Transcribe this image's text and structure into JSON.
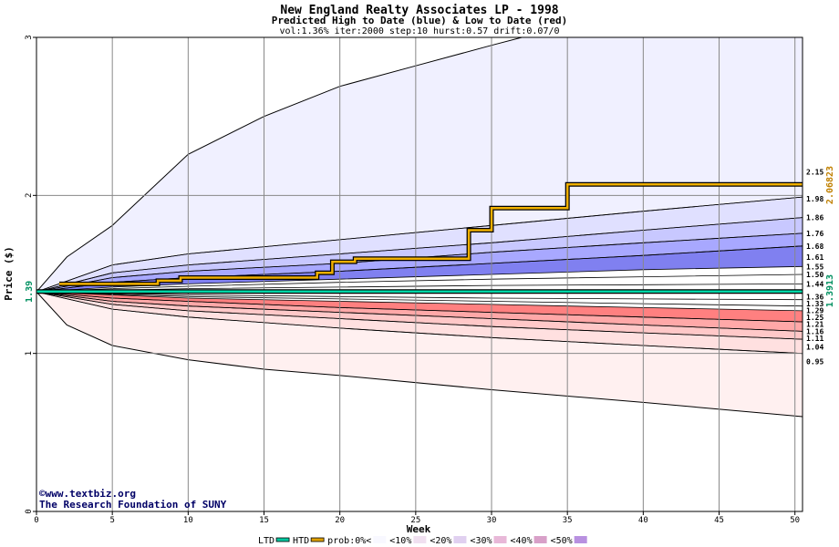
{
  "chart_data": {
    "type": "area",
    "title": "New England Realty Associates LP - 1998",
    "subtitle": "Predicted High to Date (blue) &  Low to Date (red)",
    "params": "vol:1.36% iter:2000 step:10 hurst:0.57 drift:0.07/0",
    "xlabel": "Week",
    "ylabel": "Price ($)",
    "xlim": [
      0,
      50.5
    ],
    "ylim": [
      0,
      3
    ],
    "x_ticks": [
      0,
      5,
      10,
      15,
      20,
      25,
      30,
      35,
      40,
      45,
      50
    ],
    "y_ticks": [
      0,
      1,
      2,
      3
    ],
    "grid": true,
    "current_price": 1.3913,
    "current_price_label": "1.39",
    "current_price_right_label": "1.3913",
    "htd_final_label": "2.06823",
    "high_bands": [
      {
        "name": "<10%",
        "color": "#f0f0ff",
        "lower": [
          [
            0,
            1.39
          ],
          [
            5,
            1.56
          ],
          [
            10,
            1.63
          ],
          [
            20,
            1.72
          ],
          [
            30,
            1.81
          ],
          [
            40,
            1.9
          ],
          [
            50.5,
            1.99
          ]
        ],
        "upper": [
          [
            0,
            1.39
          ],
          [
            2,
            1.61
          ],
          [
            5,
            1.81
          ],
          [
            10,
            2.26
          ],
          [
            15,
            2.5
          ],
          [
            20,
            2.69
          ],
          [
            25,
            2.82
          ],
          [
            30,
            2.95
          ],
          [
            32,
            3.0
          ],
          [
            50.5,
            3.0
          ]
        ]
      },
      {
        "name": "<20%",
        "color": "#e0e0ff",
        "lower": [
          [
            0,
            1.39
          ],
          [
            5,
            1.51
          ],
          [
            10,
            1.56
          ],
          [
            20,
            1.63
          ],
          [
            30,
            1.7
          ],
          [
            40,
            1.78
          ],
          [
            50.5,
            1.86
          ]
        ],
        "upper": [
          [
            0,
            1.39
          ],
          [
            5,
            1.56
          ],
          [
            10,
            1.63
          ],
          [
            20,
            1.72
          ],
          [
            30,
            1.81
          ],
          [
            40,
            1.9
          ],
          [
            50.5,
            1.99
          ]
        ]
      },
      {
        "name": "<30%",
        "color": "#c8c8ff",
        "lower": [
          [
            0,
            1.39
          ],
          [
            5,
            1.48
          ],
          [
            10,
            1.52
          ],
          [
            20,
            1.57
          ],
          [
            30,
            1.64
          ],
          [
            40,
            1.7
          ],
          [
            50.5,
            1.76
          ]
        ],
        "upper": [
          [
            0,
            1.39
          ],
          [
            5,
            1.51
          ],
          [
            10,
            1.56
          ],
          [
            20,
            1.63
          ],
          [
            30,
            1.7
          ],
          [
            40,
            1.78
          ],
          [
            50.5,
            1.86
          ]
        ]
      },
      {
        "name": "<40%",
        "color": "#a8a8ff",
        "lower": [
          [
            0,
            1.39
          ],
          [
            5,
            1.45
          ],
          [
            10,
            1.48
          ],
          [
            20,
            1.52
          ],
          [
            30,
            1.57
          ],
          [
            40,
            1.62
          ],
          [
            50.5,
            1.68
          ]
        ],
        "upper": [
          [
            0,
            1.39
          ],
          [
            5,
            1.48
          ],
          [
            10,
            1.52
          ],
          [
            20,
            1.57
          ],
          [
            30,
            1.64
          ],
          [
            40,
            1.7
          ],
          [
            50.5,
            1.76
          ]
        ]
      },
      {
        "name": "<50%",
        "color": "#8080f0",
        "lower": [
          [
            0,
            1.39
          ],
          [
            5,
            1.42
          ],
          [
            10,
            1.44
          ],
          [
            20,
            1.47
          ],
          [
            30,
            1.5
          ],
          [
            40,
            1.53
          ],
          [
            50.5,
            1.55
          ]
        ],
        "upper": [
          [
            0,
            1.39
          ],
          [
            5,
            1.45
          ],
          [
            10,
            1.48
          ],
          [
            20,
            1.52
          ],
          [
            30,
            1.57
          ],
          [
            40,
            1.62
          ],
          [
            50.5,
            1.68
          ]
        ]
      }
    ],
    "high_inner_lines": [
      [
        [
          0,
          1.39
        ],
        [
          5,
          1.41
        ],
        [
          10,
          1.425
        ],
        [
          20,
          1.45
        ],
        [
          30,
          1.47
        ],
        [
          40,
          1.485
        ],
        [
          50.5,
          1.5
        ]
      ],
      [
        [
          0,
          1.39
        ],
        [
          5,
          1.4
        ],
        [
          10,
          1.41
        ],
        [
          20,
          1.42
        ],
        [
          30,
          1.43
        ],
        [
          40,
          1.435
        ],
        [
          50.5,
          1.44
        ]
      ]
    ],
    "low_bands": [
      {
        "name": "<10%",
        "color": "#fff0f0",
        "upper": [
          [
            0,
            1.39
          ],
          [
            5,
            1.28
          ],
          [
            10,
            1.23
          ],
          [
            20,
            1.16
          ],
          [
            30,
            1.1
          ],
          [
            40,
            1.05
          ],
          [
            50.5,
            1.0
          ]
        ],
        "lower": [
          [
            0,
            1.39
          ],
          [
            2,
            1.18
          ],
          [
            5,
            1.05
          ],
          [
            10,
            0.96
          ],
          [
            15,
            0.9
          ],
          [
            20,
            0.86
          ],
          [
            30,
            0.77
          ],
          [
            40,
            0.69
          ],
          [
            50.5,
            0.6
          ]
        ]
      },
      {
        "name": "<20%",
        "color": "#ffe0e0",
        "upper": [
          [
            0,
            1.39
          ],
          [
            5,
            1.31
          ],
          [
            10,
            1.27
          ],
          [
            20,
            1.22
          ],
          [
            30,
            1.17
          ],
          [
            40,
            1.13
          ],
          [
            50.5,
            1.09
          ]
        ],
        "lower": [
          [
            0,
            1.39
          ],
          [
            5,
            1.28
          ],
          [
            10,
            1.23
          ],
          [
            20,
            1.16
          ],
          [
            30,
            1.1
          ],
          [
            40,
            1.05
          ],
          [
            50.5,
            1.0
          ]
        ]
      },
      {
        "name": "<30%",
        "color": "#ffc8c8",
        "upper": [
          [
            0,
            1.39
          ],
          [
            5,
            1.33
          ],
          [
            10,
            1.3
          ],
          [
            20,
            1.26
          ],
          [
            30,
            1.22
          ],
          [
            40,
            1.18
          ],
          [
            50.5,
            1.14
          ]
        ],
        "lower": [
          [
            0,
            1.39
          ],
          [
            5,
            1.31
          ],
          [
            10,
            1.27
          ],
          [
            20,
            1.22
          ],
          [
            30,
            1.17
          ],
          [
            40,
            1.13
          ],
          [
            50.5,
            1.09
          ]
        ]
      },
      {
        "name": "<40%",
        "color": "#ffa8a8",
        "upper": [
          [
            0,
            1.39
          ],
          [
            5,
            1.35
          ],
          [
            10,
            1.33
          ],
          [
            20,
            1.29
          ],
          [
            30,
            1.26
          ],
          [
            40,
            1.23
          ],
          [
            50.5,
            1.2
          ]
        ],
        "lower": [
          [
            0,
            1.39
          ],
          [
            5,
            1.33
          ],
          [
            10,
            1.3
          ],
          [
            20,
            1.26
          ],
          [
            30,
            1.22
          ],
          [
            40,
            1.18
          ],
          [
            50.5,
            1.14
          ]
        ]
      },
      {
        "name": "<50%",
        "color": "#ff8080",
        "upper": [
          [
            0,
            1.39
          ],
          [
            5,
            1.37
          ],
          [
            10,
            1.35
          ],
          [
            20,
            1.33
          ],
          [
            30,
            1.31
          ],
          [
            40,
            1.29
          ],
          [
            50.5,
            1.27
          ]
        ],
        "lower": [
          [
            0,
            1.39
          ],
          [
            5,
            1.35
          ],
          [
            10,
            1.33
          ],
          [
            20,
            1.29
          ],
          [
            30,
            1.26
          ],
          [
            40,
            1.23
          ],
          [
            50.5,
            1.2
          ]
        ]
      }
    ],
    "low_inner_lines": [
      [
        [
          0,
          1.39
        ],
        [
          5,
          1.38
        ],
        [
          10,
          1.37
        ],
        [
          20,
          1.36
        ],
        [
          30,
          1.35
        ],
        [
          40,
          1.345
        ],
        [
          50.5,
          1.34
        ]
      ],
      [
        [
          0,
          1.39
        ],
        [
          5,
          1.375
        ],
        [
          10,
          1.36
        ],
        [
          20,
          1.345
        ],
        [
          30,
          1.33
        ],
        [
          40,
          1.315
        ],
        [
          50.5,
          1.3
        ]
      ]
    ],
    "htd_line": [
      [
        1.5,
        1.44
      ],
      [
        8,
        1.44
      ],
      [
        8,
        1.46
      ],
      [
        9.5,
        1.46
      ],
      [
        9.5,
        1.48
      ],
      [
        18.5,
        1.48
      ],
      [
        18.5,
        1.51
      ],
      [
        19.5,
        1.51
      ],
      [
        19.5,
        1.58
      ],
      [
        21,
        1.58
      ],
      [
        21,
        1.6
      ],
      [
        28.5,
        1.6
      ],
      [
        28.5,
        1.78
      ],
      [
        30,
        1.78
      ],
      [
        30,
        1.92
      ],
      [
        35,
        1.92
      ],
      [
        35,
        2.07
      ],
      [
        50.5,
        2.07
      ]
    ],
    "ltd_line": [
      [
        0,
        1.3913
      ],
      [
        50.5,
        1.3913
      ]
    ],
    "right_labels": [
      "2.15",
      "1.98",
      "1.86",
      "1.76",
      "1.68",
      "1.61",
      "1.55",
      "1.50",
      "1.44",
      "1.36",
      "1.33",
      "1.29",
      "1.25",
      "1.21",
      "1.16",
      "1.11",
      "1.04",
      "0.95"
    ],
    "right_label_values": [
      2.15,
      1.98,
      1.86,
      1.76,
      1.68,
      1.61,
      1.55,
      1.5,
      1.44,
      1.36,
      1.33,
      1.29,
      1.25,
      1.21,
      1.16,
      1.11,
      1.04,
      0.95
    ],
    "credit_lines": [
      "©www.textbiz.org",
      "The Research Foundation of SUNY"
    ],
    "legend": {
      "items": [
        "LTD",
        "HTD",
        "prob:0%<",
        "<10%",
        "<20%",
        "<30%",
        "<40%",
        "<50%"
      ],
      "colors": [
        "#00c8a0",
        "#e0a000",
        "#f8f8ff",
        "#f0e0f0",
        "#e0d0f0",
        "#e8b8d8",
        "#d8a0c8",
        "#b890e0"
      ]
    }
  }
}
